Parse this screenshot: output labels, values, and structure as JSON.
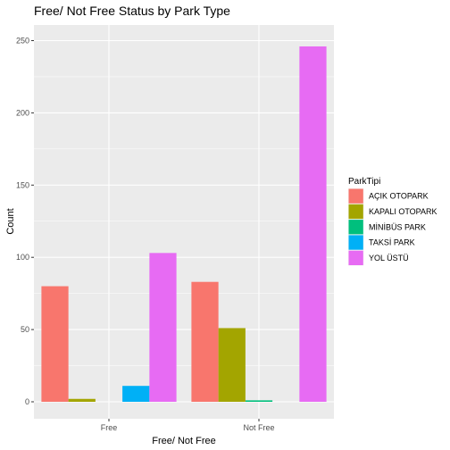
{
  "chart_data": {
    "type": "bar",
    "title": "Free/ Not Free Status by Park Type",
    "xlabel": "Free/ Not Free",
    "ylabel": "Count",
    "categories": [
      "Free",
      "Not Free"
    ],
    "ylim": [
      0,
      260
    ],
    "yticks": [
      0,
      50,
      100,
      150,
      200,
      250
    ],
    "grid": true,
    "legend_title": "ParkTipi",
    "legend_position": "right",
    "series": [
      {
        "name": "AÇIK OTOPARK",
        "color": "#F8766D",
        "values": [
          80,
          83
        ]
      },
      {
        "name": "KAPALI OTOPARK",
        "color": "#A3A500",
        "values": [
          2,
          51
        ]
      },
      {
        "name": "MİNİBÜS PARK",
        "color": "#00BF7D",
        "values": [
          0,
          1
        ]
      },
      {
        "name": "TAKSİ PARK",
        "color": "#00B0F6",
        "values": [
          11,
          0
        ]
      },
      {
        "name": "YOL ÜSTÜ",
        "color": "#E76BF3",
        "values": [
          103,
          246
        ]
      }
    ]
  }
}
